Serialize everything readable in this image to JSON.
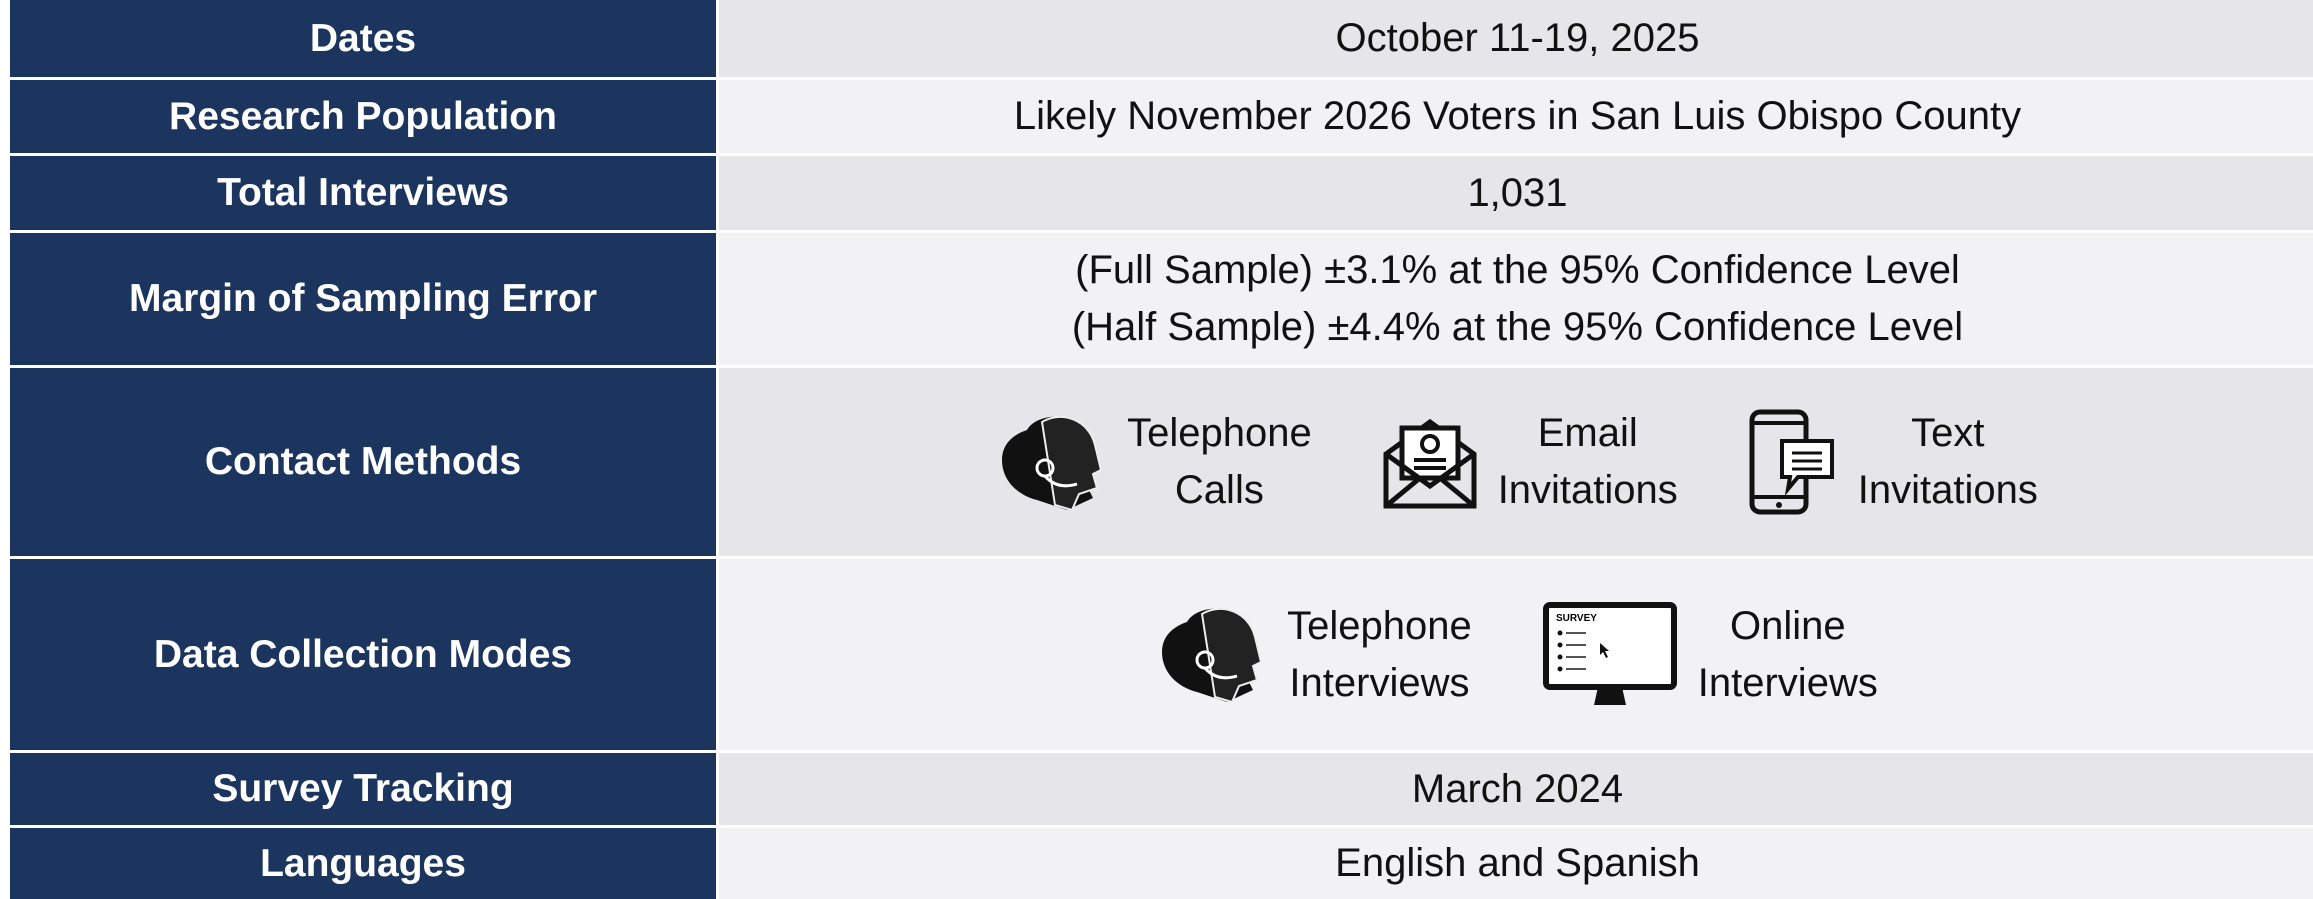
{
  "rows": [
    {
      "label": "Dates",
      "value": "October 11-19, 2025"
    },
    {
      "label": "Research Population",
      "value": "Likely November 2026 Voters in San Luis Obispo County"
    },
    {
      "label": "Total Interviews",
      "value": "1,031"
    },
    {
      "label": "Margin of Sampling Error",
      "lines": [
        "(Full Sample) ±3.1% at the 95% Confidence Level",
        "(Half Sample) ±4.4% at the 95% Confidence Level"
      ]
    },
    {
      "label": "Contact Methods",
      "items": [
        {
          "lines": [
            "Telephone",
            "Calls"
          ]
        },
        {
          "lines": [
            "Email",
            "Invitations"
          ]
        },
        {
          "lines": [
            "Text",
            "Invitations"
          ]
        }
      ]
    },
    {
      "label": "Data Collection Modes",
      "items": [
        {
          "lines": [
            "Telephone",
            "Interviews"
          ]
        },
        {
          "lines": [
            "Online",
            "Interviews"
          ],
          "icon_text": "SURVEY"
        }
      ]
    },
    {
      "label": "Survey Tracking",
      "value": "March 2024"
    },
    {
      "label": "Languages",
      "value": "English and Spanish"
    }
  ]
}
